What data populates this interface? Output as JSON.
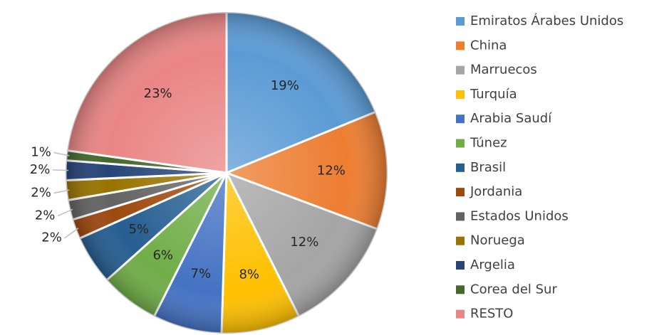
{
  "chart_data": {
    "type": "pie",
    "categories": [
      "Emiratos Árabes Unidos",
      "China",
      "Marruecos",
      "Turquía",
      "Arabia Saudí",
      "Túnez",
      "Brasil",
      "Jordania",
      "Estados Unidos",
      "Noruega",
      "Argelia",
      "Corea del Sur",
      "RESTO"
    ],
    "values": [
      19,
      12,
      12,
      8,
      7,
      6,
      5,
      2,
      2,
      2,
      2,
      1,
      23
    ],
    "value_labels": [
      "19%",
      "12%",
      "12%",
      "8%",
      "7%",
      "6%",
      "5%",
      "2%",
      "2%",
      "2%",
      "2%",
      "1%",
      "23%"
    ],
    "colors": [
      "#5b9bd5",
      "#ed7d31",
      "#a5a5a5",
      "#ffc000",
      "#4472c4",
      "#70ad47",
      "#255e91",
      "#9e480e",
      "#636363",
      "#997300",
      "#264478",
      "#43682b",
      "#ea8585"
    ],
    "legend": "right"
  }
}
